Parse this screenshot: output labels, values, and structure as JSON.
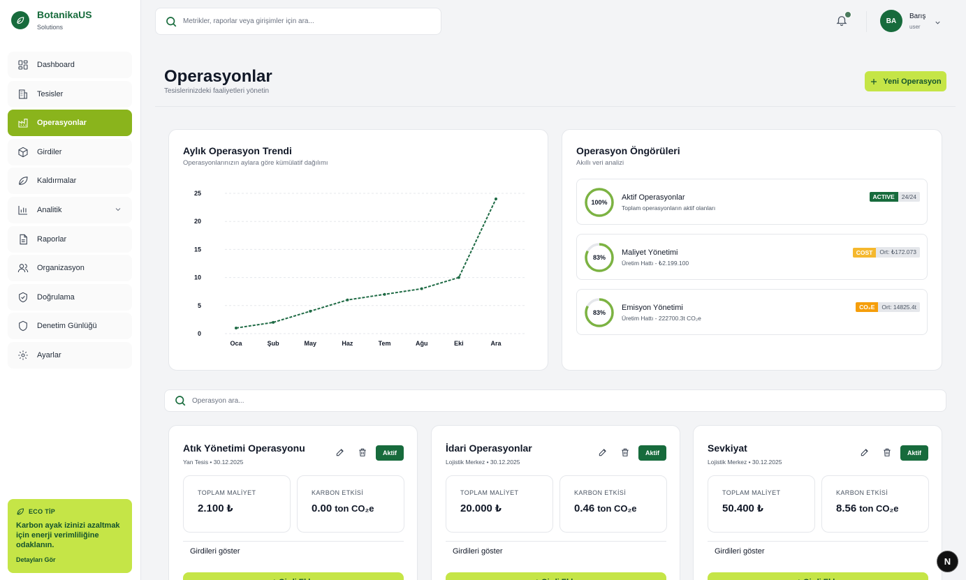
{
  "brand": {
    "name": "BotanikaUS",
    "sub": "Solutions"
  },
  "sidebar": {
    "items": [
      {
        "label": "Dashboard",
        "icon": "dashboard-icon"
      },
      {
        "label": "Tesisler",
        "icon": "building-icon"
      },
      {
        "label": "Operasyonlar",
        "icon": "factory-icon",
        "active": true
      },
      {
        "label": "Girdiler",
        "icon": "box-icon"
      },
      {
        "label": "Kaldırmalar",
        "icon": "leaf-icon"
      },
      {
        "label": "Analitik",
        "icon": "bar-chart-icon",
        "expandable": true
      },
      {
        "label": "Raporlar",
        "icon": "document-icon"
      },
      {
        "label": "Organizasyon",
        "icon": "users-icon"
      },
      {
        "label": "Doğrulama",
        "icon": "shield-check-icon"
      },
      {
        "label": "Denetim Günlüğü",
        "icon": "shield-icon"
      },
      {
        "label": "Ayarlar",
        "icon": "gear-icon"
      }
    ],
    "eco": {
      "title": "ECO TİP",
      "text": "Karbon ayak izinizi azaltmak için enerji verimliliğine odaklanın.",
      "link": "Detayları Gör"
    }
  },
  "topbar": {
    "search_placeholder": "Metrikler, raporlar veya girişimler için ara...",
    "user": {
      "initials": "BA",
      "name": "Barış",
      "role": "user"
    }
  },
  "page": {
    "title": "Operasyonlar",
    "subtitle": "Tesislerinizdeki faaliyetleri yönetin",
    "new_button": "Yeni Operasyon"
  },
  "chart_card": {
    "title": "Aylık Operasyon Trendi",
    "subtitle": "Operasyonlarınızın aylara göre kümülatif dağılımı"
  },
  "chart_data": {
    "type": "line",
    "categories": [
      "Oca",
      "Şub",
      "May",
      "Haz",
      "Tem",
      "Ağu",
      "Eki",
      "Ara"
    ],
    "values": [
      1,
      2,
      4,
      6,
      7,
      8,
      10,
      24
    ],
    "ylim": [
      0,
      25
    ],
    "yticks": [
      0,
      5,
      10,
      15,
      20,
      25
    ],
    "grid": true,
    "color": "#1f6b45",
    "dashed": true
  },
  "insights": {
    "title": "Operasyon Öngörüleri",
    "subtitle": "Akıllı veri analizi",
    "items": [
      {
        "percent": "100%",
        "fraction": 1.0,
        "title": "Aktif Operasyonlar",
        "sub": "Toplam operasyonların aktif olanları",
        "badge": "ACTIVE",
        "badge_color": "#176b3c",
        "value": "24/24"
      },
      {
        "percent": "83%",
        "fraction": 0.83,
        "title": "Maliyet Yönetimi",
        "sub": "Üretim Hattı - ₺2.199.100",
        "badge": "COST",
        "badge_color": "#f5b82e",
        "value": "Ort: ₺172.073"
      },
      {
        "percent": "83%",
        "fraction": 0.83,
        "title": "Emisyon Yönetimi",
        "sub": "Üretim Hattı - 222700.3t CO₂e",
        "badge": "CO₂E",
        "badge_color": "#f59e0b",
        "value": "Ort: 14825.4t"
      }
    ]
  },
  "ops_search_placeholder": "Operasyon ara...",
  "operations": [
    {
      "title": "Atık Yönetimi Operasyonu",
      "meta": "Yan Tesis • 30.12.2025",
      "status": "Aktif",
      "cost_label": "TOPLAM MALİYET",
      "cost": "2.100",
      "currency": "₺",
      "carbon_label": "KARBON ETKİSİ",
      "carbon": "0.00",
      "carbon_unit": "ton CO₂e",
      "show_inputs": "Girdileri göster",
      "add_button": "+ Girdi Ekle"
    },
    {
      "title": "İdari Operasyonlar",
      "meta": "Lojistik Merkez • 30.12.2025",
      "status": "Aktif",
      "cost_label": "TOPLAM MALİYET",
      "cost": "20.000",
      "currency": "₺",
      "carbon_label": "KARBON ETKİSİ",
      "carbon": "0.46",
      "carbon_unit": "ton CO₂e",
      "show_inputs": "Girdileri göster",
      "add_button": "+ Girdi Ekle"
    },
    {
      "title": "Sevkiyat",
      "meta": "Lojistik Merkez • 30.12.2025",
      "status": "Aktif",
      "cost_label": "TOPLAM MALİYET",
      "cost": "50.400",
      "currency": "₺",
      "carbon_label": "KARBON ETKİSİ",
      "carbon": "8.56",
      "carbon_unit": "ton CO₂e",
      "show_inputs": "Girdileri göster",
      "add_button": "+ Girdi Ekle"
    }
  ],
  "dev_badge": "N"
}
